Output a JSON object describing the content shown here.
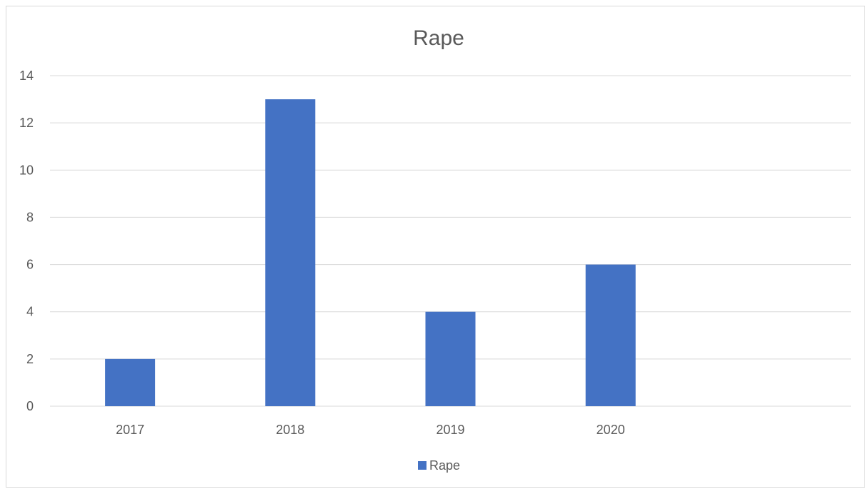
{
  "chart_data": {
    "type": "bar",
    "title": "Rape",
    "xlabel": "",
    "ylabel": "",
    "categories": [
      "2017",
      "2018",
      "2019",
      "2020",
      ""
    ],
    "series": [
      {
        "name": "Rape",
        "values": [
          2,
          13,
          4,
          6,
          null
        ],
        "color": "#4472c4"
      }
    ],
    "ylim": [
      0,
      14
    ],
    "yticks": [
      "0",
      "2",
      "4",
      "6",
      "8",
      "10",
      "12",
      "14"
    ],
    "grid": true,
    "legend_position": "bottom"
  }
}
